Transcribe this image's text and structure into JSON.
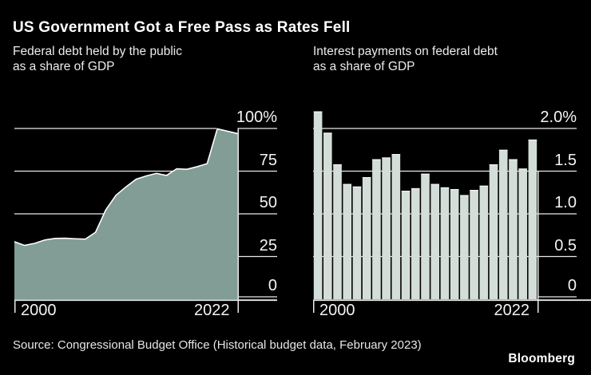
{
  "title": "US Government Got a Free Pass as Rates Fell",
  "colors": {
    "background": "#000000",
    "title_text": "#ffffff",
    "subtitle_text": "#ececec",
    "axis_text": "#f4f4f4",
    "grid": "#e9e9e9",
    "area_fill": "#819d95",
    "area_edge": "#ffffff",
    "bar_fill": "#d4ded8",
    "bar_edge": "#f4f8f6",
    "source_text": "#e6e6e6",
    "logo_text": "#ffffff"
  },
  "chart_data": [
    {
      "type": "area",
      "title": "Federal debt held by the public as a share of GDP",
      "title_lines": [
        "Federal debt held by the public",
        "as a share of GDP"
      ],
      "x": [
        2000,
        2001,
        2002,
        2003,
        2004,
        2005,
        2006,
        2007,
        2008,
        2009,
        2010,
        2011,
        2012,
        2013,
        2014,
        2015,
        2016,
        2017,
        2018,
        2019,
        2020,
        2021,
        2022
      ],
      "values": [
        33.7,
        31.5,
        32.7,
        34.7,
        35.6,
        35.7,
        35.4,
        35.2,
        39.2,
        52.2,
        60.8,
        65.8,
        70.3,
        72.2,
        73.7,
        72.5,
        76.4,
        76.1,
        77.6,
        79.4,
        99.8,
        98.4,
        97.0
      ],
      "ylim": [
        0,
        100
      ],
      "grid": "horizontal",
      "legend": "none",
      "yticks": [
        {
          "value": 100,
          "label": "100%"
        },
        {
          "value": 75,
          "label": "75"
        },
        {
          "value": 50,
          "label": "50"
        },
        {
          "value": 25,
          "label": "25"
        },
        {
          "value": 0,
          "label": "0"
        }
      ],
      "xticks": [
        {
          "index": 0,
          "label": "2000"
        },
        {
          "index": 22,
          "label": "2022"
        }
      ]
    },
    {
      "type": "bar",
      "title": "Interest payments on federal debt as a share of GDP",
      "title_lines": [
        "Interest payments on federal debt",
        "as a share of GDP"
      ],
      "x": [
        2000,
        2001,
        2002,
        2003,
        2004,
        2005,
        2006,
        2007,
        2008,
        2009,
        2010,
        2011,
        2012,
        2013,
        2014,
        2015,
        2016,
        2017,
        2018,
        2019,
        2020,
        2021,
        2022
      ],
      "values": [
        2.2,
        1.95,
        1.58,
        1.35,
        1.32,
        1.43,
        1.64,
        1.66,
        1.7,
        1.27,
        1.3,
        1.47,
        1.35,
        1.31,
        1.29,
        1.22,
        1.28,
        1.33,
        1.58,
        1.75,
        1.64,
        1.53,
        1.87
      ],
      "ylim": [
        0,
        2
      ],
      "grid": "horizontal",
      "legend": "none",
      "yticks": [
        {
          "value": 2,
          "label": "2.0%"
        },
        {
          "value": 1.5,
          "label": "1.5"
        },
        {
          "value": 1,
          "label": "1.0"
        },
        {
          "value": 0.5,
          "label": "0.5"
        },
        {
          "value": 0,
          "label": "0"
        }
      ],
      "xticks": [
        {
          "index": 0,
          "label": "2000"
        },
        {
          "index": 22,
          "label": "2022"
        }
      ]
    }
  ],
  "footer": {
    "source": "Source: Congressional Budget Office (Historical budget data, February 2023)",
    "logo": "Bloomberg"
  }
}
